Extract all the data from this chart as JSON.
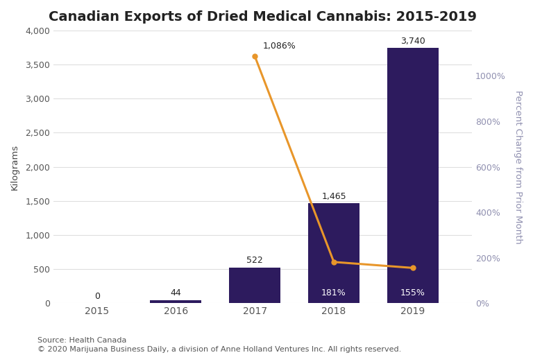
{
  "title": "Canadian Exports of Dried Medical Cannabis: 2015-2019",
  "years": [
    2015,
    2016,
    2017,
    2018,
    2019
  ],
  "bar_values": [
    0,
    44,
    522,
    1465,
    3740
  ],
  "bar_labels": [
    "0",
    "44",
    "522",
    "1,465",
    "3,740"
  ],
  "pct_values": [
    null,
    null,
    1086,
    181,
    155
  ],
  "pct_labels": [
    null,
    null,
    "1,086%",
    "181%",
    "155%"
  ],
  "bar_color": "#2d1b5e",
  "line_color": "#e8962a",
  "ylabel_left": "Kilograms",
  "ylabel_right": "Percent Change from Prior Month",
  "ylim_left": [
    0,
    4000
  ],
  "ylim_right": [
    0,
    1200
  ],
  "yticks_left": [
    0,
    500,
    1000,
    1500,
    2000,
    2500,
    3000,
    3500,
    4000
  ],
  "yticks_right": [
    0,
    200,
    400,
    600,
    800,
    1000
  ],
  "source_line1": "Source: Health Canada",
  "source_line2": "© 2020 Marijuana Business Daily, a division of Anne Holland Ventures Inc. All rights reserved.",
  "background_color": "#ffffff",
  "plot_bg_color": "#ffffff",
  "grid_color": "#dedede",
  "right_axis_color": "#9090b0",
  "title_fontsize": 14,
  "axis_label_fontsize": 9.5,
  "bar_label_fontsize": 9,
  "pct_label_fontsize": 9,
  "source_fontsize": 8,
  "bar_width": 0.65,
  "xlim": [
    2014.45,
    2019.75
  ]
}
